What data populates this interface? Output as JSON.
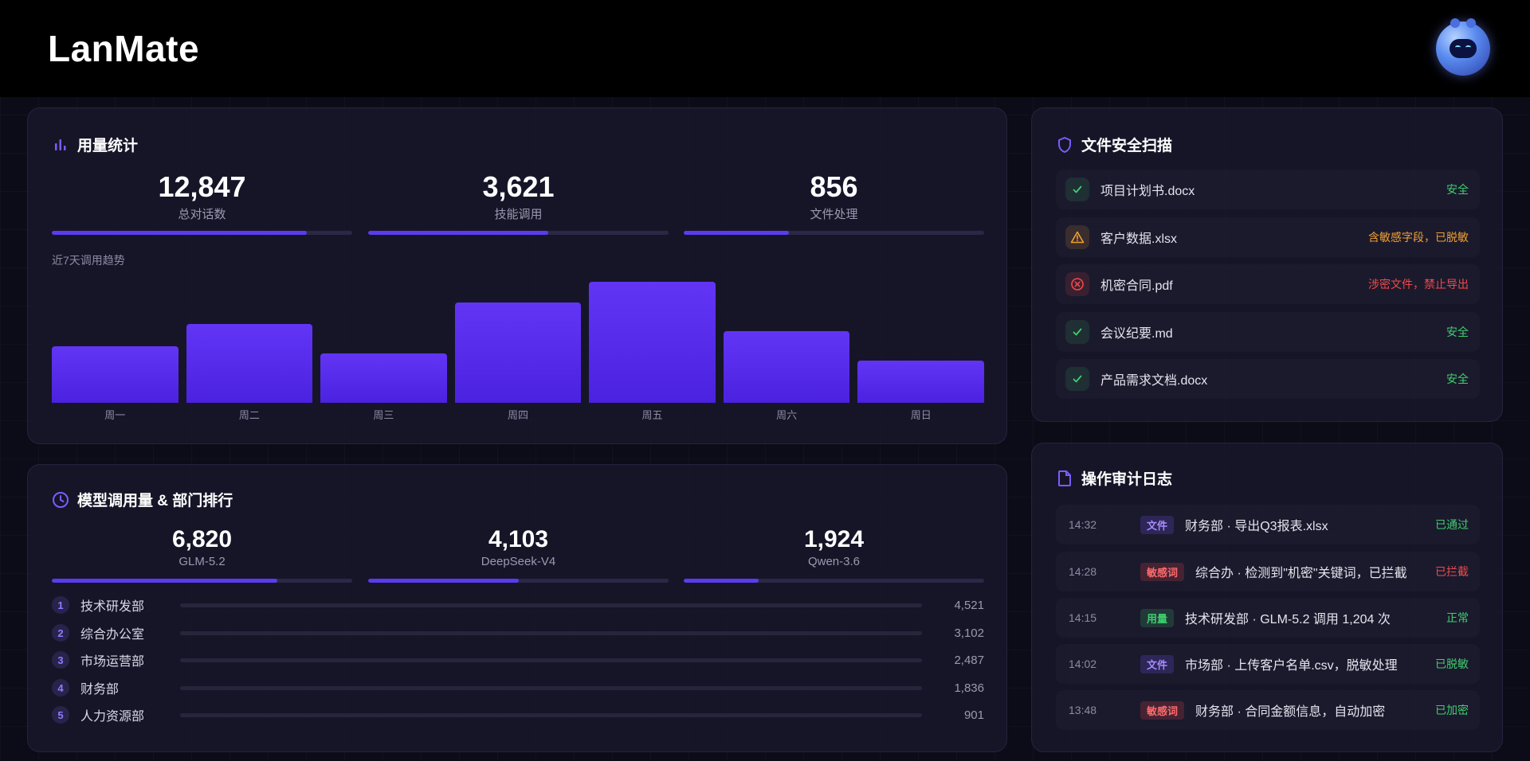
{
  "header": {
    "logo": "LanMate"
  },
  "colors": {
    "accent": "#5b3bf0",
    "safe": "#3ecf6e",
    "warn": "#f0a030",
    "danger": "#f04a4a",
    "file_tag": "#9a7bff",
    "usage_tag": "#3ecf6e"
  },
  "usage": {
    "title": "用量统计",
    "stats": [
      {
        "value": "12,847",
        "label": "总对话数",
        "progress": 0.85
      },
      {
        "value": "3,621",
        "label": "技能调用",
        "progress": 0.6
      },
      {
        "value": "856",
        "label": "文件处理",
        "progress": 0.35
      }
    ],
    "trend_label": "近7天调用趋势"
  },
  "chart_data": {
    "type": "bar",
    "categories": [
      "周一",
      "周二",
      "周三",
      "周四",
      "周五",
      "周六",
      "周日"
    ],
    "values": [
      47,
      65,
      41,
      83,
      100,
      59,
      35
    ],
    "title": "",
    "xlabel": "",
    "ylabel": "",
    "ylim": [
      0,
      100
    ]
  },
  "models": {
    "title": "模型调用量 & 部门排行",
    "stats": [
      {
        "value": "6,820",
        "label": "GLM-5.2",
        "progress": 0.75
      },
      {
        "value": "4,103",
        "label": "DeepSeek-V4",
        "progress": 0.5
      },
      {
        "value": "1,924",
        "label": "Qwen-3.6",
        "progress": 0.25
      }
    ],
    "ranking": [
      {
        "rank": "1",
        "name": "技术研发部",
        "value": "4,521"
      },
      {
        "rank": "2",
        "name": "综合办公室",
        "value": "3,102"
      },
      {
        "rank": "3",
        "name": "市场运营部",
        "value": "2,487"
      },
      {
        "rank": "4",
        "name": "财务部",
        "value": "1,836"
      },
      {
        "rank": "5",
        "name": "人力资源部",
        "value": "901"
      }
    ]
  },
  "scan": {
    "title": "文件安全扫描",
    "files": [
      {
        "name": "项目计划书.docx",
        "status": "安全",
        "level": "safe",
        "icon": "check-icon"
      },
      {
        "name": "客户数据.xlsx",
        "status": "含敏感字段，已脱敏",
        "level": "warn",
        "icon": "warning-icon"
      },
      {
        "name": "机密合同.pdf",
        "status": "涉密文件，禁止导出",
        "level": "danger",
        "icon": "blocked-icon"
      },
      {
        "name": "会议纪要.md",
        "status": "安全",
        "level": "safe",
        "icon": "check-icon"
      },
      {
        "name": "产品需求文档.docx",
        "status": "安全",
        "level": "safe",
        "icon": "check-icon"
      }
    ]
  },
  "audit": {
    "title": "操作审计日志",
    "logs": [
      {
        "time": "14:32",
        "tag": "文件",
        "tag_type": "file",
        "text": "财务部 · 导出Q3报表.xlsx",
        "status": "已通过",
        "level": "safe"
      },
      {
        "time": "14:28",
        "tag": "敏感词",
        "tag_type": "danger",
        "text": "综合办 · 检测到\"机密\"关键词，已拦截",
        "status": "已拦截",
        "level": "danger"
      },
      {
        "time": "14:15",
        "tag": "用量",
        "tag_type": "usage",
        "text": "技术研发部 · GLM-5.2 调用 1,204 次",
        "status": "正常",
        "level": "safe"
      },
      {
        "time": "14:02",
        "tag": "文件",
        "tag_type": "file",
        "text": "市场部 · 上传客户名单.csv，脱敏处理",
        "status": "已脱敏",
        "level": "safe"
      },
      {
        "time": "13:48",
        "tag": "敏感词",
        "tag_type": "danger",
        "text": "财务部 · 合同金额信息，自动加密",
        "status": "已加密",
        "level": "safe"
      }
    ]
  }
}
